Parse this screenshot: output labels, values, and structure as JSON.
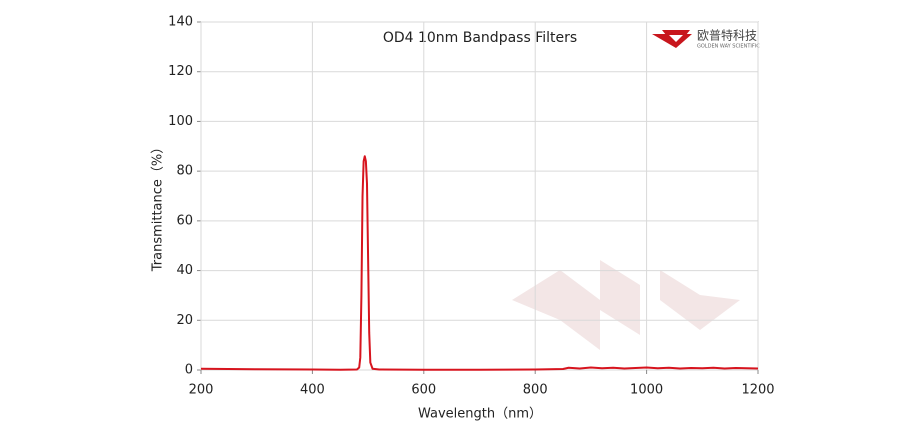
{
  "chart_data": {
    "type": "line",
    "title": "OD4 10nm Bandpass Filters",
    "x_label": "Wavelength（nm）",
    "y_label": "Transmittance（%）",
    "logo_text": "欧普特科技",
    "logo_subtext": "GOLDEN WAY SCIENTIFIC",
    "color": "#d7141e",
    "grid": true,
    "x": [
      200,
      300,
      400,
      450,
      480,
      484,
      486,
      488,
      490,
      492,
      494,
      496,
      498,
      500,
      502,
      504,
      508,
      520,
      600,
      700,
      800,
      850,
      860,
      880,
      900,
      920,
      940,
      960,
      980,
      1000,
      1020,
      1040,
      1060,
      1080,
      1100,
      1120,
      1140,
      1160,
      1180,
      1200
    ],
    "values": [
      0.5,
      0.3,
      0.2,
      0.1,
      0.2,
      1,
      5,
      30,
      70,
      84,
      86,
      84,
      75,
      45,
      15,
      3,
      0.5,
      0.2,
      0.1,
      0.1,
      0.2,
      0.4,
      0.9,
      0.6,
      1.0,
      0.7,
      0.9,
      0.6,
      0.8,
      1.0,
      0.7,
      0.9,
      0.6,
      0.8,
      0.7,
      0.9,
      0.6,
      0.8,
      0.7,
      0.6
    ],
    "xlim": [
      200,
      1200
    ],
    "xticks": [
      200,
      400,
      600,
      800,
      1000,
      1200
    ],
    "ylim": [
      0,
      140
    ],
    "yticks": [
      0,
      20,
      40,
      60,
      80,
      100,
      120,
      140
    ]
  }
}
